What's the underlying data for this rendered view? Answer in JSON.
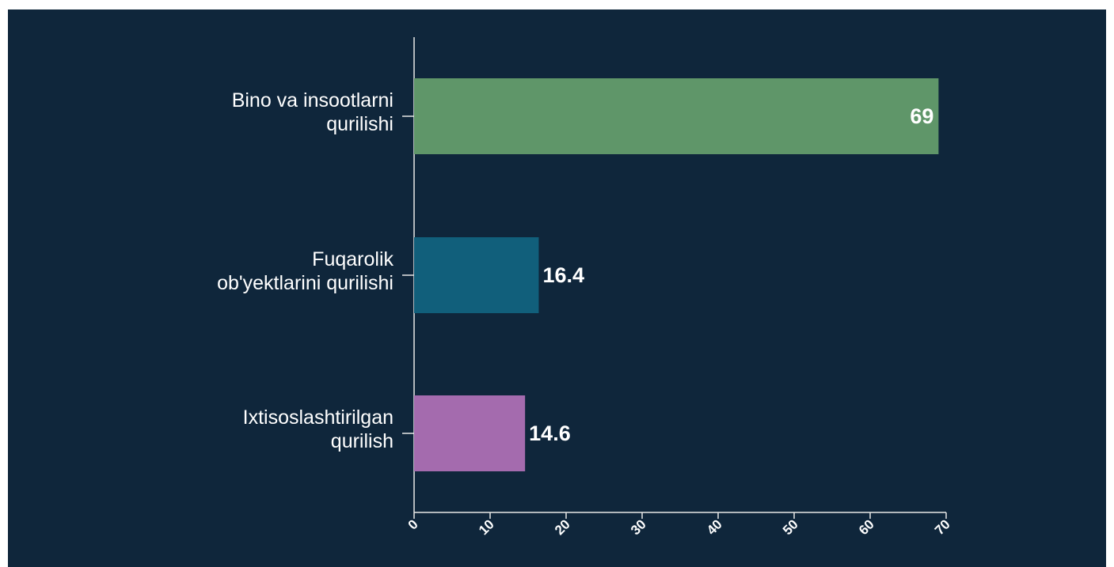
{
  "chart_data": {
    "type": "hbar",
    "categories": [
      [
        "Bino va insootlarni",
        "qurilishi"
      ],
      [
        "Fuqarolik",
        "ob'yektlarini qurilishi"
      ],
      [
        "Ixtisoslashtirilgan",
        "qurilish"
      ]
    ],
    "values": [
      69,
      16.4,
      14.6
    ],
    "colors": [
      "#5f9669",
      "#115f7b",
      "#a46bae"
    ],
    "xlim": [
      0,
      70
    ],
    "xticks": [
      0,
      10,
      20,
      30,
      40,
      50,
      60,
      70
    ]
  }
}
